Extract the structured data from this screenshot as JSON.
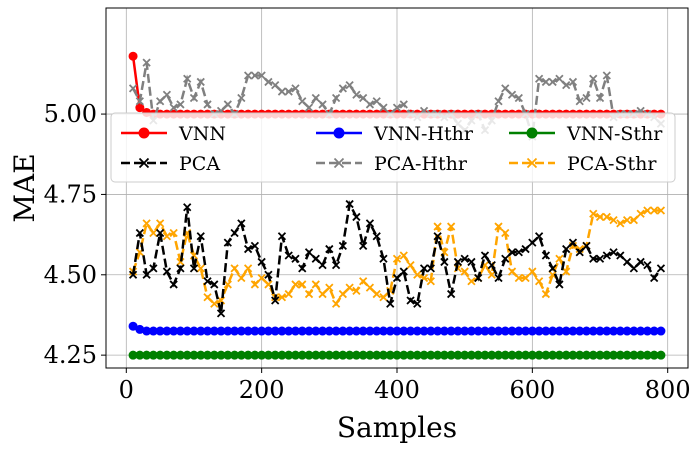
{
  "chart_data": {
    "type": "line",
    "xlabel": "Samples",
    "ylabel": "MAE",
    "xlim": [
      -30,
      830
    ],
    "ylim": [
      4.21,
      5.33
    ],
    "xticks": [
      0,
      200,
      400,
      600,
      800
    ],
    "xtick_labels": [
      "0",
      "200",
      "400",
      "600",
      "800"
    ],
    "yticks": [
      4.25,
      4.5,
      4.75,
      5.0
    ],
    "ytick_labels": [
      "4.25",
      "4.50",
      "4.75",
      "5.00"
    ],
    "grid": true,
    "legend_position": "upper-middle",
    "x": [
      10,
      20,
      30,
      40,
      50,
      60,
      70,
      80,
      90,
      100,
      110,
      120,
      130,
      140,
      150,
      160,
      170,
      180,
      190,
      200,
      210,
      220,
      230,
      240,
      250,
      260,
      270,
      280,
      290,
      300,
      310,
      320,
      330,
      340,
      350,
      360,
      370,
      380,
      390,
      400,
      410,
      420,
      430,
      440,
      450,
      460,
      470,
      480,
      490,
      500,
      510,
      520,
      530,
      540,
      550,
      560,
      570,
      580,
      590,
      600,
      610,
      620,
      630,
      640,
      650,
      660,
      670,
      680,
      690,
      700,
      710,
      720,
      730,
      740,
      750,
      760,
      770,
      780,
      790
    ],
    "series": [
      {
        "name": "VNN",
        "color": "#ff0000",
        "dash": "solid",
        "marker": "circle",
        "values": [
          5.18,
          5.02,
          5.005,
          5.0,
          5.0,
          5.0,
          5.0,
          5.0,
          5.0,
          5.0,
          5.0,
          5.0,
          5.0,
          5.0,
          5.0,
          5.0,
          5.0,
          5.0,
          5.0,
          5.0,
          5.0,
          5.0,
          5.0,
          5.0,
          5.0,
          5.0,
          5.0,
          5.0,
          5.0,
          5.0,
          5.0,
          5.0,
          5.0,
          5.0,
          5.0,
          5.0,
          5.0,
          5.0,
          5.0,
          5.0,
          5.0,
          5.0,
          5.0,
          5.0,
          5.0,
          5.0,
          5.0,
          5.0,
          5.0,
          5.0,
          5.0,
          5.0,
          5.0,
          5.0,
          5.0,
          5.0,
          5.0,
          5.0,
          5.0,
          5.0,
          5.0,
          5.0,
          5.0,
          5.0,
          5.0,
          5.0,
          5.0,
          5.0,
          5.0,
          5.0,
          5.0,
          5.0,
          5.0,
          5.0,
          5.0,
          5.0,
          5.0,
          5.0,
          5.0
        ]
      },
      {
        "name": "VNN-Hthr",
        "color": "#0000ff",
        "dash": "solid",
        "marker": "circle",
        "values": [
          4.34,
          4.33,
          4.325,
          4.325,
          4.325,
          4.325,
          4.325,
          4.325,
          4.325,
          4.325,
          4.325,
          4.325,
          4.325,
          4.325,
          4.325,
          4.325,
          4.325,
          4.325,
          4.325,
          4.325,
          4.325,
          4.325,
          4.325,
          4.325,
          4.325,
          4.325,
          4.325,
          4.325,
          4.325,
          4.325,
          4.325,
          4.325,
          4.325,
          4.325,
          4.325,
          4.325,
          4.325,
          4.325,
          4.325,
          4.325,
          4.325,
          4.325,
          4.325,
          4.325,
          4.325,
          4.325,
          4.325,
          4.325,
          4.325,
          4.325,
          4.325,
          4.325,
          4.325,
          4.325,
          4.325,
          4.325,
          4.325,
          4.325,
          4.325,
          4.325,
          4.325,
          4.325,
          4.325,
          4.325,
          4.325,
          4.325,
          4.325,
          4.325,
          4.325,
          4.325,
          4.325,
          4.325,
          4.325,
          4.325,
          4.325,
          4.325,
          4.325,
          4.325,
          4.325
        ]
      },
      {
        "name": "VNN-Sthr",
        "color": "#008000",
        "dash": "solid",
        "marker": "circle",
        "values": [
          4.25,
          4.25,
          4.25,
          4.25,
          4.25,
          4.25,
          4.25,
          4.25,
          4.25,
          4.25,
          4.25,
          4.25,
          4.25,
          4.25,
          4.25,
          4.25,
          4.25,
          4.25,
          4.25,
          4.25,
          4.25,
          4.25,
          4.25,
          4.25,
          4.25,
          4.25,
          4.25,
          4.25,
          4.25,
          4.25,
          4.25,
          4.25,
          4.25,
          4.25,
          4.25,
          4.25,
          4.25,
          4.25,
          4.25,
          4.25,
          4.25,
          4.25,
          4.25,
          4.25,
          4.25,
          4.25,
          4.25,
          4.25,
          4.25,
          4.25,
          4.25,
          4.25,
          4.25,
          4.25,
          4.25,
          4.25,
          4.25,
          4.25,
          4.25,
          4.25,
          4.25,
          4.25,
          4.25,
          4.25,
          4.25,
          4.25,
          4.25,
          4.25,
          4.25,
          4.25,
          4.25,
          4.25,
          4.25,
          4.25,
          4.25,
          4.25,
          4.25,
          4.25,
          4.25
        ]
      },
      {
        "name": "PCA",
        "color": "#000000",
        "dash": "dashed",
        "marker": "x",
        "values": [
          4.5,
          4.63,
          4.5,
          4.52,
          4.63,
          4.51,
          4.47,
          4.52,
          4.71,
          4.52,
          4.62,
          4.48,
          4.47,
          4.38,
          4.6,
          4.63,
          4.66,
          4.58,
          4.59,
          4.54,
          4.5,
          4.42,
          4.62,
          4.56,
          4.55,
          4.52,
          4.57,
          4.55,
          4.53,
          4.58,
          4.53,
          4.59,
          4.72,
          4.68,
          4.59,
          4.66,
          4.62,
          4.55,
          4.41,
          4.49,
          4.51,
          4.42,
          4.41,
          4.52,
          4.52,
          4.62,
          4.54,
          4.44,
          4.54,
          4.55,
          4.54,
          4.49,
          4.56,
          4.53,
          4.49,
          4.55,
          4.57,
          4.57,
          4.58,
          4.6,
          4.62,
          4.56,
          4.52,
          4.47,
          4.58,
          4.6,
          4.57,
          4.59,
          4.55,
          4.55,
          4.56,
          4.57,
          4.56,
          4.54,
          4.52,
          4.54,
          4.53,
          4.49,
          4.52
        ]
      },
      {
        "name": "PCA-Hthr",
        "color": "#808080",
        "dash": "dashed",
        "marker": "x",
        "values": [
          5.08,
          5.04,
          5.16,
          4.98,
          5.04,
          5.06,
          5.02,
          5.03,
          5.11,
          5.05,
          5.1,
          5.03,
          5.0,
          5.01,
          5.03,
          5.0,
          5.05,
          5.12,
          5.12,
          5.12,
          5.1,
          5.09,
          5.07,
          5.07,
          5.08,
          5.04,
          5.02,
          5.05,
          5.03,
          5.0,
          5.05,
          5.08,
          5.09,
          5.06,
          5.05,
          5.03,
          5.04,
          5.02,
          5.0,
          5.02,
          5.03,
          5.0,
          4.99,
          5.01,
          5.0,
          5.0,
          4.99,
          5.0,
          4.97,
          4.95,
          4.98,
          5.0,
          4.95,
          4.98,
          5.04,
          5.08,
          5.06,
          5.05,
          5.0,
          4.93,
          5.11,
          5.1,
          5.1,
          5.11,
          5.09,
          5.1,
          5.04,
          5.05,
          5.11,
          5.05,
          5.12,
          4.99,
          5.0,
          5.0,
          5.0,
          5.01,
          5.0,
          4.99,
          4.97
        ]
      },
      {
        "name": "PCA-Sthr",
        "color": "#ffa500",
        "dash": "dashed",
        "marker": "x",
        "values": [
          4.51,
          4.57,
          4.66,
          4.63,
          4.66,
          4.62,
          4.63,
          4.54,
          4.63,
          4.56,
          4.52,
          4.43,
          4.41,
          4.42,
          4.47,
          4.52,
          4.49,
          4.52,
          4.47,
          4.49,
          4.47,
          4.43,
          4.43,
          4.44,
          4.47,
          4.47,
          4.44,
          4.47,
          4.44,
          4.46,
          4.41,
          4.44,
          4.46,
          4.45,
          4.48,
          4.46,
          4.44,
          4.43,
          4.45,
          4.55,
          4.56,
          4.53,
          4.5,
          4.49,
          4.48,
          4.65,
          4.57,
          4.65,
          4.52,
          4.51,
          4.48,
          4.49,
          4.53,
          4.5,
          4.65,
          4.63,
          4.51,
          4.49,
          4.49,
          4.51,
          4.48,
          4.44,
          4.5,
          4.55,
          4.51,
          4.59,
          4.58,
          4.59,
          4.69,
          4.68,
          4.68,
          4.67,
          4.66,
          4.67,
          4.67,
          4.69,
          4.7,
          4.7,
          4.7
        ]
      }
    ]
  }
}
